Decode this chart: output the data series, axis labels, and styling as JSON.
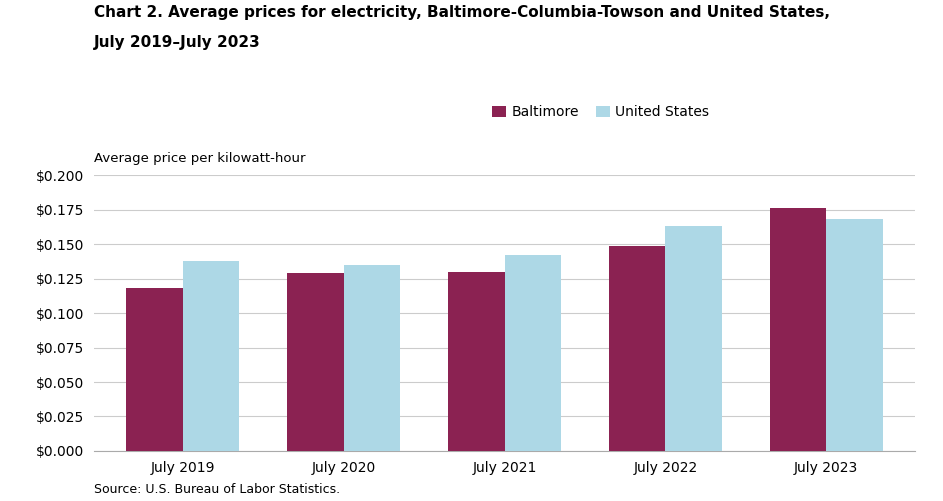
{
  "title_line1": "Chart 2. Average prices for electricity, Baltimore-Columbia-Towson and United States,",
  "title_line2": "July 2019–July 2023",
  "ylabel": "Average price per kilowatt-hour",
  "source": "Source: U.S. Bureau of Labor Statistics.",
  "categories": [
    "July 2019",
    "July 2020",
    "July 2021",
    "July 2022",
    "July 2023"
  ],
  "baltimore": [
    0.118,
    0.129,
    0.13,
    0.149,
    0.176
  ],
  "us": [
    0.138,
    0.135,
    0.142,
    0.163,
    0.168
  ],
  "baltimore_color": "#8B2252",
  "us_color": "#ADD8E6",
  "ylim": [
    0,
    0.2
  ],
  "ytick_step": 0.025,
  "bar_width": 0.35,
  "legend_labels": [
    "Baltimore",
    "United States"
  ],
  "background_color": "#ffffff",
  "grid_color": "#cccccc",
  "title_fontsize": 11,
  "tick_fontsize": 10,
  "ylabel_fontsize": 9.5,
  "source_fontsize": 9
}
